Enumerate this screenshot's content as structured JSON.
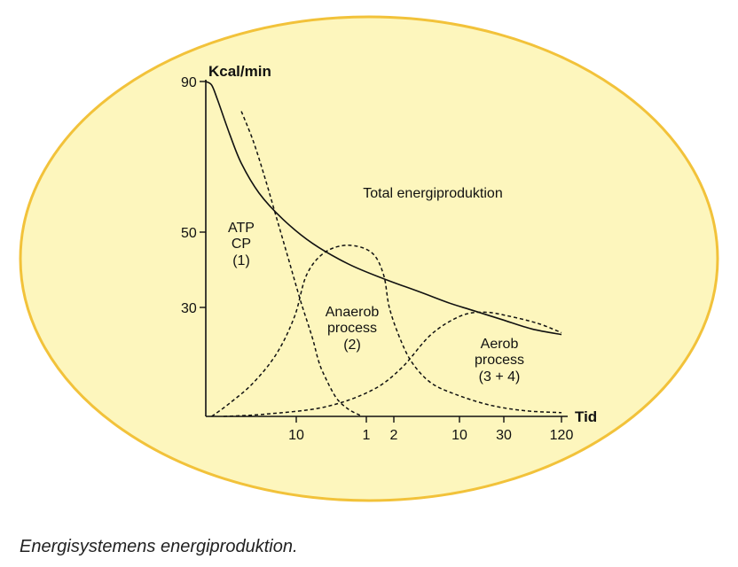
{
  "chart_data": {
    "type": "line",
    "ylabel": "Kcal/min",
    "xlabel": "Tid",
    "y_ticks": [
      "90",
      "50",
      "30"
    ],
    "x_ticks": [
      "10",
      "1",
      "2",
      "10",
      "30",
      "120"
    ],
    "ylim": [
      0,
      90
    ],
    "series": [
      {
        "name": "Total energiproduktion",
        "line_style": "solid",
        "points": [
          [
            0,
            90
          ],
          [
            1,
            89
          ],
          [
            2,
            85
          ],
          [
            4,
            76
          ],
          [
            6,
            68
          ],
          [
            9,
            60
          ],
          [
            13,
            53
          ],
          [
            18,
            46.5
          ],
          [
            24,
            41
          ],
          [
            30,
            37
          ],
          [
            36,
            33.5
          ],
          [
            41,
            30.5
          ],
          [
            45,
            28.5
          ],
          [
            50,
            26
          ],
          [
            55,
            23.5
          ],
          [
            60,
            22
          ]
        ]
      },
      {
        "name": "ATP CP (1)",
        "line_style": "dashed",
        "points": [
          [
            6,
            82
          ],
          [
            8,
            74
          ],
          [
            10,
            64
          ],
          [
            12,
            53
          ],
          [
            14,
            42
          ],
          [
            16,
            31
          ],
          [
            18,
            21
          ],
          [
            19,
            15
          ],
          [
            20,
            11
          ],
          [
            22,
            5
          ],
          [
            24,
            2
          ],
          [
            26,
            0.3
          ]
        ]
      },
      {
        "name": "Anaerob process (2)",
        "line_style": "dashed",
        "points": [
          [
            1,
            0
          ],
          [
            4,
            3.5
          ],
          [
            8,
            9
          ],
          [
            12,
            17
          ],
          [
            15,
            27
          ],
          [
            17,
            38
          ],
          [
            20,
            44
          ],
          [
            24,
            46
          ],
          [
            28,
            44
          ],
          [
            30,
            38
          ],
          [
            31,
            29
          ],
          [
            33,
            20
          ],
          [
            35,
            14
          ],
          [
            38,
            9
          ],
          [
            42,
            6
          ],
          [
            48,
            3
          ],
          [
            54,
            1.5
          ],
          [
            60,
            1
          ]
        ]
      },
      {
        "name": "Aerob process (3 + 4)",
        "line_style": "dashed",
        "points": [
          [
            3,
            0
          ],
          [
            10,
            0.6
          ],
          [
            20,
            2.5
          ],
          [
            28,
            7
          ],
          [
            33,
            13
          ],
          [
            38,
            22
          ],
          [
            43,
            27
          ],
          [
            47,
            28
          ],
          [
            51,
            27
          ],
          [
            56,
            25
          ],
          [
            60,
            22.5
          ]
        ]
      }
    ],
    "annotations": [
      {
        "id": "atp",
        "lines": [
          "ATP",
          "CP",
          "(1)"
        ]
      },
      {
        "id": "total",
        "lines": [
          "Total energiproduktion"
        ]
      },
      {
        "id": "anaerob",
        "lines": [
          "Anaerob",
          "process",
          "(2)"
        ]
      },
      {
        "id": "aerob",
        "lines": [
          "Aerob",
          "process",
          "(3 + 4)"
        ]
      }
    ]
  },
  "caption": "Energisystemens energiproduktion.",
  "colors": {
    "ellipse_fill": "#fdf6bd",
    "ellipse_stroke": "#f2c23a",
    "line": "#111111"
  }
}
